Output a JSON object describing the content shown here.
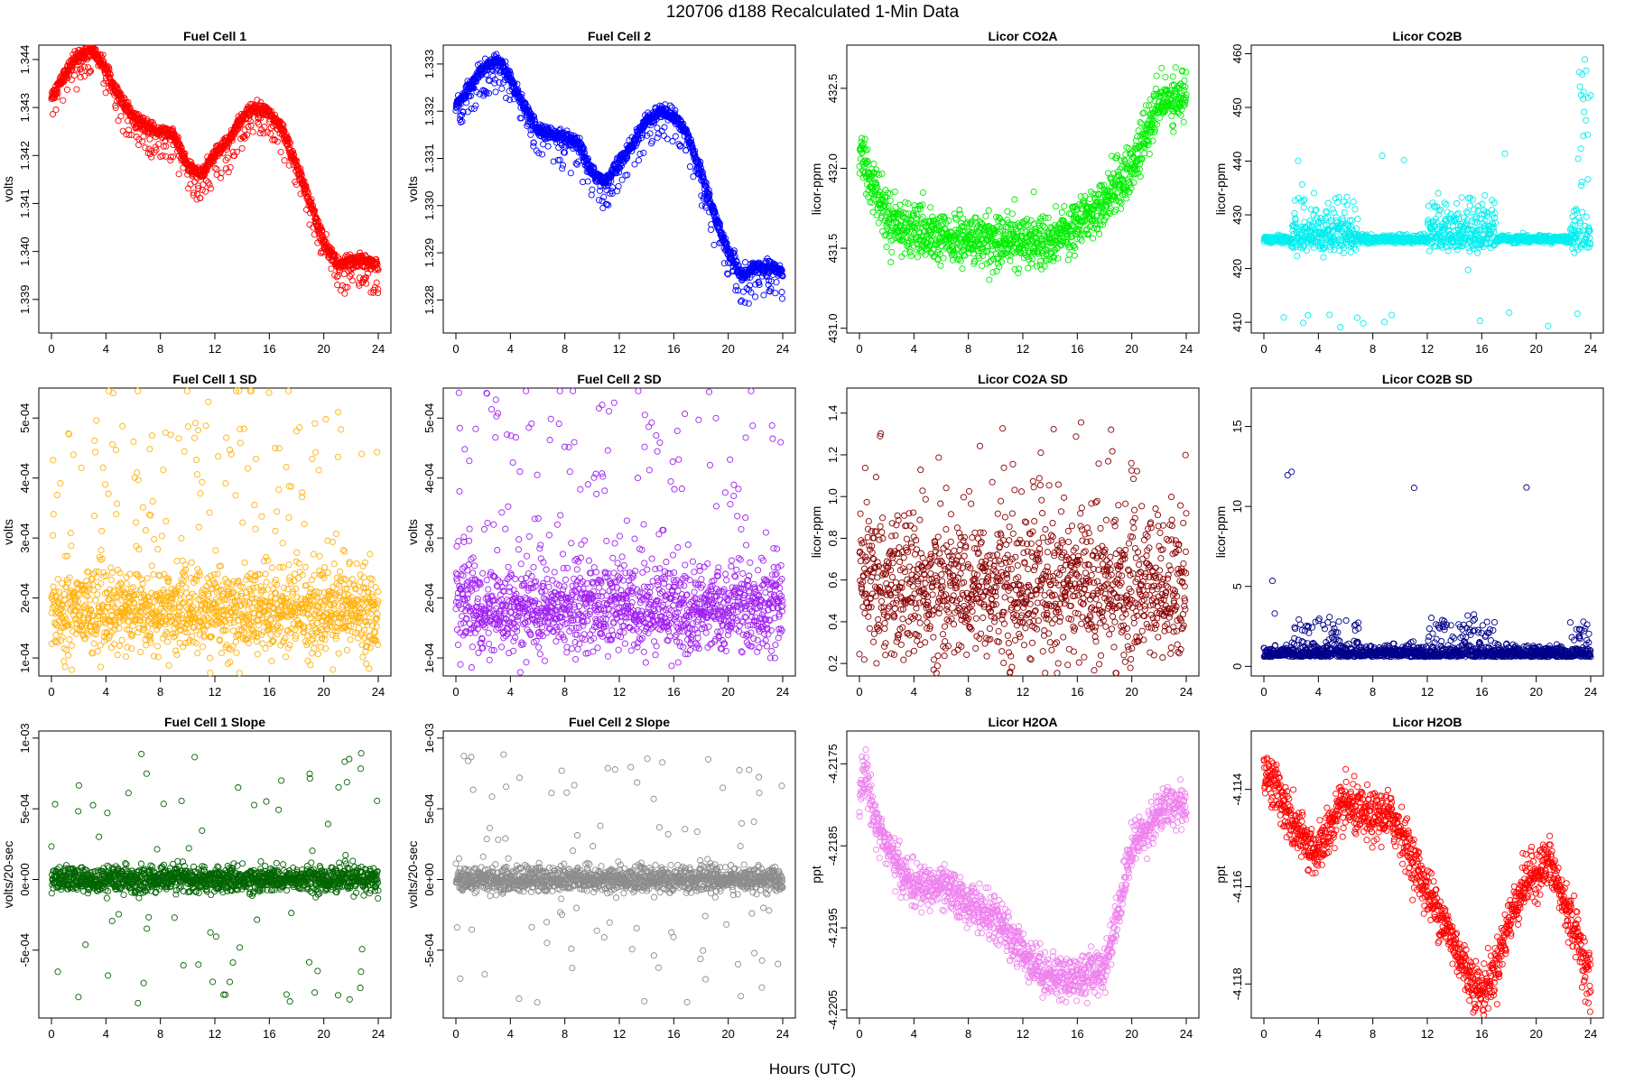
{
  "figure": {
    "title": "120706    d188    Recalculated 1-Min Data",
    "xlabel": "Hours (UTC)"
  },
  "chart_data": [
    {
      "type": "scatter",
      "title": "Fuel Cell 1",
      "ylabel": "volts",
      "color": "#ff0000",
      "xlim": [
        0,
        24
      ],
      "ylim": [
        1.3383,
        1.3443
      ],
      "xticks": [
        0,
        4,
        8,
        12,
        16,
        20,
        24
      ],
      "yticks": [
        1.339,
        1.34,
        1.341,
        1.342,
        1.343,
        1.344
      ],
      "ytick_labels": [
        "1.339",
        "1.340",
        "1.341",
        "1.342",
        "1.343",
        "1.344"
      ],
      "series": [
        {
          "model": "curve",
          "points": [
            [
              0,
              1.3432
            ],
            [
              1,
              1.3437
            ],
            [
              2,
              1.3441
            ],
            [
              3,
              1.3442
            ],
            [
              4,
              1.3438
            ],
            [
              5,
              1.3432
            ],
            [
              6,
              1.3428
            ],
            [
              7,
              1.3426
            ],
            [
              8,
              1.3425
            ],
            [
              9,
              1.3424
            ],
            [
              10,
              1.3418
            ],
            [
              11,
              1.3416
            ],
            [
              12,
              1.342
            ],
            [
              13,
              1.3423
            ],
            [
              14,
              1.3428
            ],
            [
              15,
              1.343
            ],
            [
              16,
              1.3429
            ],
            [
              17,
              1.3425
            ],
            [
              18,
              1.3418
            ],
            [
              19,
              1.341
            ],
            [
              20,
              1.3402
            ],
            [
              21,
              1.3397
            ],
            [
              22,
              1.3398
            ],
            [
              23,
              1.3398
            ],
            [
              24,
              1.3397
            ]
          ],
          "noise": 7e-05,
          "drop": 0.0006,
          "drop_frac": 0.12,
          "n": 1440
        }
      ]
    },
    {
      "type": "scatter",
      "title": "Fuel Cell 2",
      "ylabel": "volts",
      "color": "#0000ff",
      "xlim": [
        0,
        24
      ],
      "ylim": [
        1.3273,
        1.3334
      ],
      "xticks": [
        0,
        4,
        8,
        12,
        16,
        20,
        24
      ],
      "yticks": [
        1.328,
        1.329,
        1.33,
        1.331,
        1.332,
        1.333
      ],
      "ytick_labels": [
        "1.328",
        "1.329",
        "1.330",
        "1.331",
        "1.332",
        "1.333"
      ],
      "series": [
        {
          "model": "curve",
          "points": [
            [
              0,
              1.3321
            ],
            [
              1,
              1.3325
            ],
            [
              2,
              1.3329
            ],
            [
              3,
              1.3331
            ],
            [
              4,
              1.3327
            ],
            [
              5,
              1.3321
            ],
            [
              6,
              1.3316
            ],
            [
              7,
              1.3315
            ],
            [
              8,
              1.3314
            ],
            [
              9,
              1.3313
            ],
            [
              10,
              1.3307
            ],
            [
              11,
              1.3305
            ],
            [
              12,
              1.3309
            ],
            [
              13,
              1.3313
            ],
            [
              14,
              1.3318
            ],
            [
              15,
              1.332
            ],
            [
              16,
              1.3319
            ],
            [
              17,
              1.3315
            ],
            [
              18,
              1.3307
            ],
            [
              19,
              1.3298
            ],
            [
              20,
              1.329
            ],
            [
              21,
              1.3285
            ],
            [
              22,
              1.3287
            ],
            [
              23,
              1.3287
            ],
            [
              24,
              1.3286
            ]
          ],
          "noise": 7e-05,
          "drop": 0.0006,
          "drop_frac": 0.12,
          "n": 1440
        }
      ]
    },
    {
      "type": "scatter",
      "title": "Licor CO2A",
      "ylabel": "licor-ppm",
      "color": "#00ee00",
      "xlim": [
        0,
        24
      ],
      "ylim": [
        430.97,
        432.77
      ],
      "xticks": [
        0,
        4,
        8,
        12,
        16,
        20,
        24
      ],
      "yticks": [
        431.0,
        431.5,
        432.0,
        432.5
      ],
      "ytick_labels": [
        "431.0",
        "431.5",
        "432.0",
        "432.5"
      ],
      "series": [
        {
          "model": "curve",
          "points": [
            [
              0,
              432.1
            ],
            [
              1,
              431.9
            ],
            [
              2,
              431.7
            ],
            [
              4,
              431.6
            ],
            [
              6,
              431.55
            ],
            [
              8,
              431.55
            ],
            [
              10,
              431.55
            ],
            [
              12,
              431.55
            ],
            [
              14,
              431.55
            ],
            [
              16,
              431.65
            ],
            [
              18,
              431.8
            ],
            [
              19,
              431.9
            ],
            [
              20,
              432.0
            ],
            [
              21,
              432.2
            ],
            [
              22,
              432.4
            ],
            [
              23,
              432.45
            ],
            [
              24,
              432.45
            ]
          ],
          "noise": 0.08,
          "drop": 0,
          "drop_frac": 0,
          "n": 1300
        }
      ]
    },
    {
      "type": "scatter",
      "title": "Licor CO2B",
      "ylabel": "licor-ppm",
      "color": "#00eeee",
      "xlim": [
        0,
        24
      ],
      "ylim": [
        408,
        461.6
      ],
      "xticks": [
        0,
        4,
        8,
        12,
        16,
        20,
        24
      ],
      "yticks": [
        410,
        420,
        430,
        440,
        450,
        460
      ],
      "ytick_labels": [
        "410",
        "420",
        "430",
        "440",
        "450",
        "460"
      ],
      "series": [
        {
          "model": "co2b",
          "n": 1300
        }
      ]
    },
    {
      "type": "scatter",
      "title": "Fuel Cell 1 SD",
      "ylabel": "volts",
      "color": "#ffb20f",
      "xlim": [
        0,
        24
      ],
      "ylim": [
        7e-05,
        0.00055
      ],
      "xticks": [
        0,
        4,
        8,
        12,
        16,
        20,
        24
      ],
      "yticks": [
        0.0001,
        0.0002,
        0.0003,
        0.0004,
        0.0005
      ],
      "ytick_labels": [
        "1e-04",
        "2e-04",
        "3e-04",
        "4e-04",
        "5e-04"
      ],
      "series": [
        {
          "model": "sd",
          "base": 0.000178,
          "spread": 3.5e-05,
          "lo": 8.5e-05,
          "hi": 0.000535,
          "n": 1440
        }
      ]
    },
    {
      "type": "scatter",
      "title": "Fuel Cell 2 SD",
      "ylabel": "volts",
      "color": "#a020f0",
      "xlim": [
        0,
        24
      ],
      "ylim": [
        7e-05,
        0.00055
      ],
      "xticks": [
        0,
        4,
        8,
        12,
        16,
        20,
        24
      ],
      "yticks": [
        0.0001,
        0.0002,
        0.0003,
        0.0004,
        0.0005
      ],
      "ytick_labels": [
        "1e-04",
        "2e-04",
        "3e-04",
        "4e-04",
        "5e-04"
      ],
      "series": [
        {
          "model": "sd",
          "base": 0.000182,
          "spread": 3.5e-05,
          "lo": 8.5e-05,
          "hi": 0.00054,
          "n": 1440
        }
      ]
    },
    {
      "type": "scatter",
      "title": "Licor CO2A SD",
      "ylabel": "licor-ppm",
      "color": "#8b0000",
      "xlim": [
        0,
        24
      ],
      "ylim": [
        0.14,
        1.52
      ],
      "xticks": [
        0,
        4,
        8,
        12,
        16,
        20,
        24
      ],
      "yticks": [
        0.2,
        0.4,
        0.6,
        0.8,
        1.0,
        1.2,
        1.4
      ],
      "ytick_labels": [
        "0.2",
        "0.4",
        "0.6",
        "0.8",
        "1.0",
        "1.2",
        "1.4"
      ],
      "series": [
        {
          "model": "sd2",
          "base": 0.56,
          "spread": 0.17,
          "lo": 0.17,
          "hi": 1.48,
          "n": 1300
        }
      ]
    },
    {
      "type": "scatter",
      "title": "Licor CO2B SD",
      "ylabel": "licor-ppm",
      "color": "#00008b",
      "xlim": [
        0,
        24
      ],
      "ylim": [
        -0.6,
        17.4
      ],
      "xticks": [
        0,
        4,
        8,
        12,
        16,
        20,
        24
      ],
      "yticks": [
        0,
        5,
        10,
        15
      ],
      "ytick_labels": [
        "0",
        "5",
        "10",
        "15"
      ],
      "series": [
        {
          "model": "co2bsd",
          "n": 1300
        }
      ]
    },
    {
      "type": "scatter",
      "title": "Fuel Cell 1 Slope",
      "ylabel": "volts/20-sec",
      "color": "#006400",
      "xlim": [
        0,
        24
      ],
      "ylim": [
        -0.00098,
        0.00105
      ],
      "xticks": [
        0,
        4,
        8,
        12,
        16,
        20,
        24
      ],
      "yticks": [
        -0.0005,
        0,
        0.0005,
        0.001
      ],
      "ytick_labels": [
        "-5e-04",
        "0e+00",
        "5e-04",
        "1e-03"
      ],
      "series": [
        {
          "model": "slope",
          "spread": 4.5e-05,
          "n": 1440
        }
      ]
    },
    {
      "type": "scatter",
      "title": "Fuel Cell 2 Slope",
      "ylabel": "volts/20-sec",
      "color": "#8c8c8c",
      "xlim": [
        0,
        24
      ],
      "ylim": [
        -0.00098,
        0.00105
      ],
      "xticks": [
        0,
        4,
        8,
        12,
        16,
        20,
        24
      ],
      "yticks": [
        -0.0005,
        0,
        0.0005,
        0.001
      ],
      "ytick_labels": [
        "-5e-04",
        "0e+00",
        "5e-04",
        "1e-03"
      ],
      "series": [
        {
          "model": "slope",
          "spread": 4.5e-05,
          "n": 1440
        }
      ]
    },
    {
      "type": "scatter",
      "title": "Licor H2OA",
      "ylabel": "ppt",
      "color": "#ee82ee",
      "xlim": [
        0,
        24
      ],
      "ylim": [
        -4.2206,
        -4.2171
      ],
      "xticks": [
        0,
        4,
        8,
        12,
        16,
        20,
        24
      ],
      "yticks": [
        -4.2205,
        -4.2195,
        -4.2185,
        -4.2175
      ],
      "ytick_labels": [
        "-4.2205",
        "-4.2195",
        "-4.2185",
        "-4.2175"
      ],
      "series": [
        {
          "model": "curve",
          "points": [
            [
              0,
              -4.2178
            ],
            [
              0.5,
              -4.2176
            ],
            [
              1,
              -4.2181
            ],
            [
              2,
              -4.2185
            ],
            [
              3,
              -4.2188
            ],
            [
              4,
              -4.219
            ],
            [
              6,
              -4.219
            ],
            [
              8,
              -4.2192
            ],
            [
              10,
              -4.2194
            ],
            [
              12,
              -4.2198
            ],
            [
              14,
              -4.2201
            ],
            [
              16,
              -4.2201
            ],
            [
              18,
              -4.22
            ],
            [
              19,
              -4.2193
            ],
            [
              20,
              -4.2185
            ],
            [
              21,
              -4.2183
            ],
            [
              22,
              -4.2181
            ],
            [
              23,
              -4.218
            ],
            [
              24,
              -4.218
            ]
          ],
          "noise": 0.00013,
          "drop": 0,
          "drop_frac": 0,
          "n": 1300
        }
      ]
    },
    {
      "type": "scatter",
      "title": "Licor H2OB",
      "ylabel": "ppt",
      "color": "#ff0000",
      "xlim": [
        0,
        24
      ],
      "ylim": [
        -4.1187,
        -4.1128
      ],
      "xticks": [
        0,
        4,
        8,
        12,
        16,
        20,
        24
      ],
      "yticks": [
        -4.118,
        -4.116,
        -4.114
      ],
      "ytick_labels": [
        "-4.118",
        "-4.116",
        "-4.114"
      ],
      "series": [
        {
          "model": "curve",
          "points": [
            [
              0,
              -4.1136
            ],
            [
              1,
              -4.114
            ],
            [
              2,
              -4.1147
            ],
            [
              3,
              -4.1151
            ],
            [
              4,
              -4.1153
            ],
            [
              5,
              -4.1147
            ],
            [
              6,
              -4.1143
            ],
            [
              7,
              -4.1145
            ],
            [
              8,
              -4.1146
            ],
            [
              9,
              -4.1145
            ],
            [
              10,
              -4.1148
            ],
            [
              11,
              -4.1155
            ],
            [
              12,
              -4.1161
            ],
            [
              13,
              -4.1166
            ],
            [
              14,
              -4.1172
            ],
            [
              15,
              -4.1178
            ],
            [
              16,
              -4.1182
            ],
            [
              17,
              -4.1177
            ],
            [
              18,
              -4.1167
            ],
            [
              19,
              -4.116
            ],
            [
              20,
              -4.1157
            ],
            [
              21,
              -4.1155
            ],
            [
              22,
              -4.1163
            ],
            [
              23,
              -4.117
            ],
            [
              24,
              -4.118
            ]
          ],
          "noise": 0.00025,
          "drop": 0,
          "drop_frac": 0,
          "n": 1300
        }
      ]
    }
  ]
}
